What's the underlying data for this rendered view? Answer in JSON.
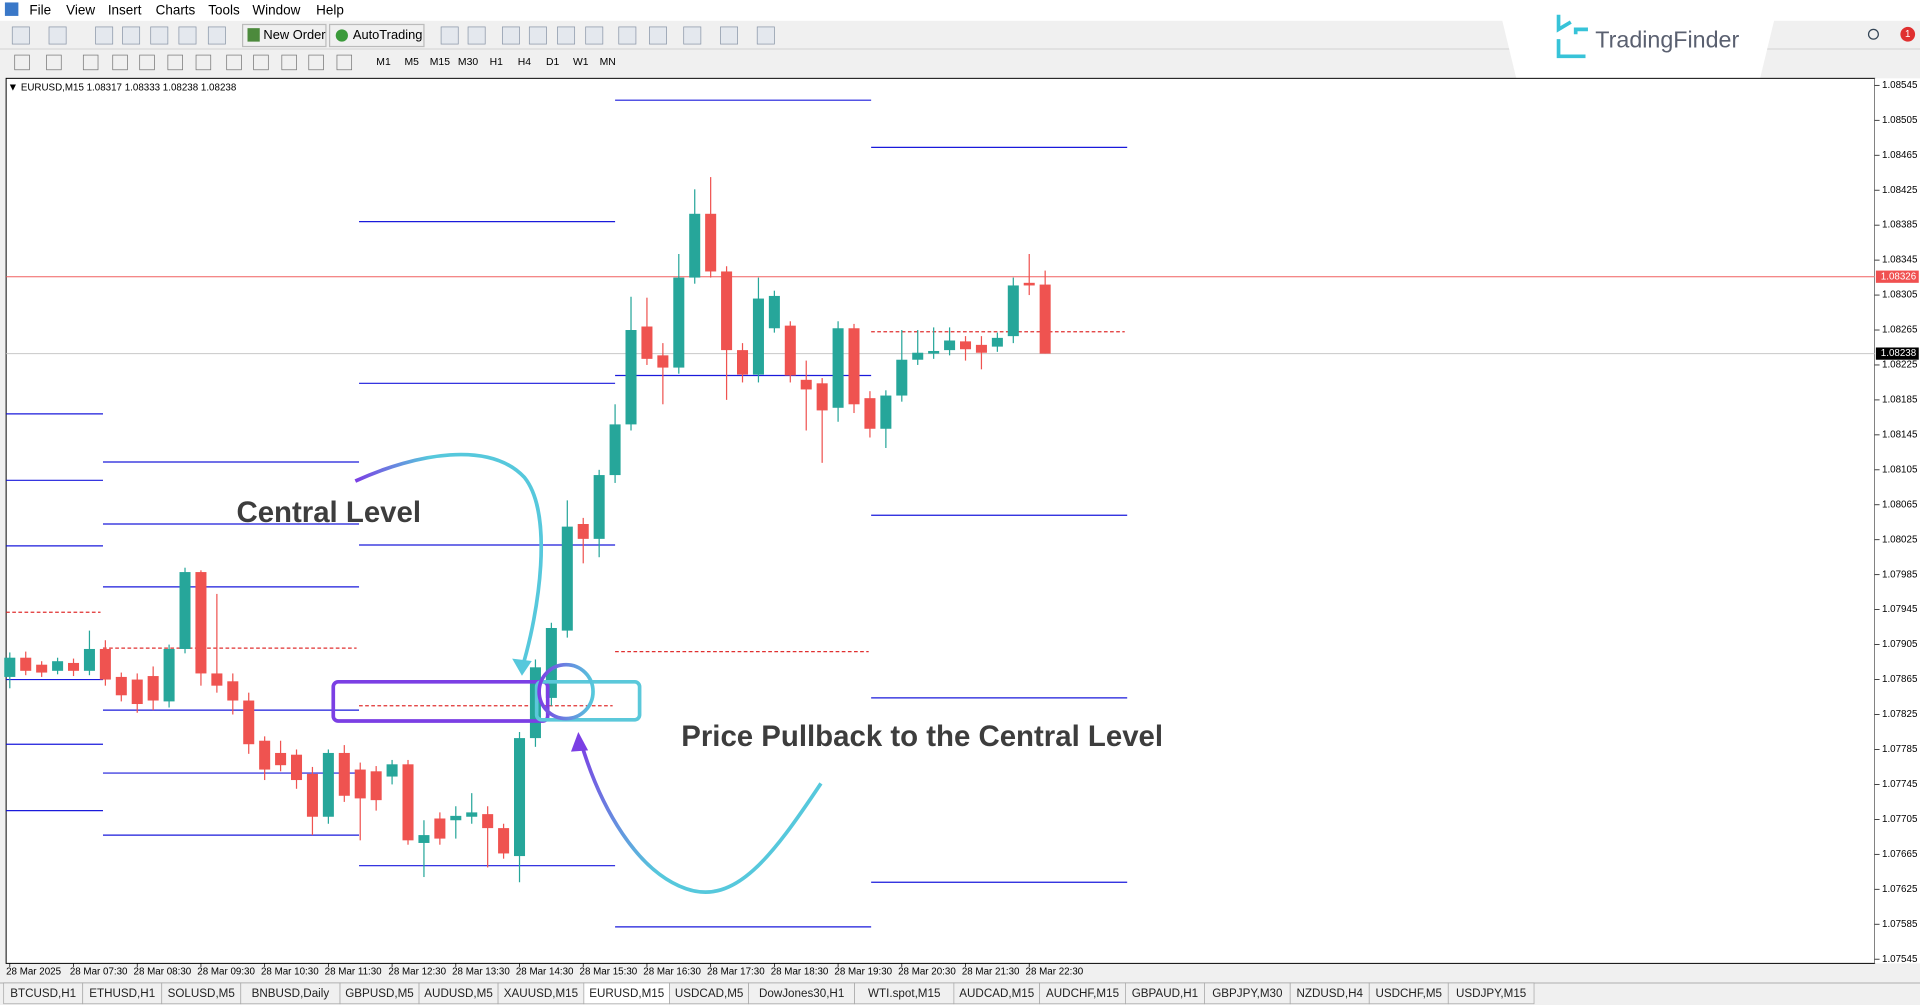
{
  "menu": [
    "File",
    "View",
    "Insert",
    "Charts",
    "Tools",
    "Window",
    "Help"
  ],
  "toolbar": {
    "new_order": "New Order",
    "auto_trading": "AutoTrading",
    "timeframes": [
      "M1",
      "M5",
      "M15",
      "M30",
      "H1",
      "H4",
      "D1",
      "W1",
      "MN"
    ]
  },
  "brand": "TradingFinder",
  "notification_count": 1,
  "chart_data": {
    "type": "candlestick",
    "title": "EURUSD,M15  1.08317 1.08333 1.08238 1.08238",
    "categories": [
      "28 Mar 2025",
      null,
      null,
      null,
      "28 Mar 07:30",
      null,
      null,
      null,
      "28 Mar 08:30",
      null,
      null,
      null,
      "28 Mar 09:30",
      null,
      null,
      null,
      "28 Mar 10:30",
      null,
      null,
      null,
      "28 Mar 11:30",
      null,
      null,
      null,
      "28 Mar 12:30",
      null,
      null,
      null,
      "28 Mar 13:30",
      null,
      null,
      null,
      "28 Mar 14:30",
      null,
      null,
      null,
      "28 Mar 15:30",
      null,
      null,
      null,
      "28 Mar 16:30",
      null,
      null,
      null,
      "28 Mar 17:30",
      null,
      null,
      null,
      "28 Mar 18:30",
      null,
      null,
      null,
      "28 Mar 19:30",
      null,
      null,
      null,
      "28 Mar 20:30",
      null,
      null,
      null,
      "28 Mar 21:30",
      null,
      null,
      null,
      "28 Mar 22:30",
      null
    ],
    "open": [
      1.07868,
      1.0789,
      1.07882,
      1.07875,
      1.07884,
      1.07875,
      1.079,
      1.07868,
      1.07865,
      1.07869,
      1.0784,
      1.079,
      1.07988,
      1.07872,
      1.07863,
      1.07841,
      1.07795,
      1.07781,
      1.07779,
      1.07757,
      1.07708,
      1.07781,
      1.07762,
      1.0776,
      1.07754,
      1.07768,
      1.07678,
      1.07706,
      1.07704,
      1.07708,
      1.07711,
      1.07695,
      1.07663,
      1.07798,
      1.07844,
      1.07921,
      1.08043,
      1.08026,
      1.08099,
      1.08157,
      1.08269,
      1.08236,
      1.08222,
      1.08325,
      1.08398,
      1.08332,
      1.08242,
      1.08214,
      1.08267,
      1.0827,
      1.08208,
      1.08204,
      1.08176,
      1.08267,
      1.08187,
      1.08152,
      1.0819,
      1.08231,
      1.08238,
      1.08242,
      1.08252,
      1.08248,
      1.08246,
      1.08258,
      1.08319,
      1.08317
    ],
    "high": [
      1.07896,
      1.07897,
      1.07886,
      1.0789,
      1.07889,
      1.07921,
      1.0791,
      1.07873,
      1.07872,
      1.0788,
      1.07905,
      1.07993,
      1.0799,
      1.07963,
      1.07872,
      1.0785,
      1.078,
      1.07795,
      1.07785,
      1.07765,
      1.07785,
      1.0779,
      1.0777,
      1.07766,
      1.07773,
      1.07773,
      1.07704,
      1.07713,
      1.0772,
      1.07735,
      1.0772,
      1.077,
      1.07805,
      1.07888,
      1.0793,
      1.0807,
      1.0805,
      1.08105,
      1.0818,
      1.08303,
      1.08302,
      1.0825,
      1.08352,
      1.08426,
      1.0844,
      1.08338,
      1.0825,
      1.08325,
      1.0831,
      1.08275,
      1.0823,
      1.0821,
      1.08275,
      1.08272,
      1.08195,
      1.08196,
      1.08265,
      1.08265,
      1.08268,
      1.08268,
      1.08258,
      1.08258,
      1.08262,
      1.08325,
      1.08352,
      1.08333
    ],
    "low": [
      1.07855,
      1.0787,
      1.07868,
      1.07871,
      1.07869,
      1.0787,
      1.07858,
      1.0784,
      1.07827,
      1.0783,
      1.07833,
      1.07895,
      1.07858,
      1.0785,
      1.07825,
      1.0778,
      1.0775,
      1.0776,
      1.0774,
      1.07687,
      1.077,
      1.07725,
      1.07681,
      1.07715,
      1.07745,
      1.07676,
      1.07639,
      1.07676,
      1.07683,
      1.077,
      1.0765,
      1.0766,
      1.07633,
      1.07788,
      1.07835,
      1.07913,
      1.07998,
      1.08005,
      1.0809,
      1.0815,
      1.08225,
      1.0818,
      1.08215,
      1.08318,
      1.08325,
      1.08185,
      1.08205,
      1.08205,
      1.08262,
      1.08205,
      1.0815,
      1.08113,
      1.0816,
      1.0817,
      1.08142,
      1.0813,
      1.08183,
      1.08225,
      1.08232,
      1.08236,
      1.0823,
      1.0822,
      1.0824,
      1.0825,
      1.08305,
      1.08238
    ],
    "close": [
      1.0789,
      1.07875,
      1.07873,
      1.07886,
      1.07875,
      1.079,
      1.07865,
      1.07847,
      1.07837,
      1.07841,
      1.079,
      1.07988,
      1.07872,
      1.07858,
      1.07841,
      1.07791,
      1.07762,
      1.07767,
      1.0775,
      1.07708,
      1.07781,
      1.07732,
      1.07729,
      1.07727,
      1.07768,
      1.07681,
      1.07687,
      1.07683,
      1.07709,
      1.07713,
      1.07695,
      1.07666,
      1.07798,
      1.07879,
      1.07924,
      1.0804,
      1.08026,
      1.08099,
      1.08157,
      1.08265,
      1.08232,
      1.08222,
      1.08325,
      1.08398,
      1.08332,
      1.08242,
      1.08214,
      1.08301,
      1.08304,
      1.08213,
      1.08197,
      1.08173,
      1.08267,
      1.0818,
      1.08152,
      1.0819,
      1.08231,
      1.08239,
      1.08241,
      1.08253,
      1.08243,
      1.08239,
      1.08256,
      1.08316,
      1.08316,
      1.08238
    ],
    "up_color": "#26a69a",
    "down_color": "#ef5350",
    "ylim": [
      1.07543,
      1.08553
    ],
    "yticks": [
      1.07545,
      1.07585,
      1.07625,
      1.07665,
      1.07705,
      1.07745,
      1.07785,
      1.07825,
      1.07865,
      1.07905,
      1.07945,
      1.07985,
      1.08025,
      1.08065,
      1.08105,
      1.08145,
      1.08185,
      1.08225,
      1.08265,
      1.08305,
      1.08345,
      1.08385,
      1.08425,
      1.08465,
      1.08505,
      1.08545
    ],
    "grid": false,
    "level_color": "#1a1adb",
    "central_color": "#e03030",
    "blocks": [
      {
        "levels": [
          1.08169,
          1.08093,
          1.08018,
          1.07865,
          1.07791,
          1.07715
        ],
        "central": 1.07942
      },
      {
        "levels": [
          1.08114,
          1.08043,
          1.07971,
          1.0783,
          1.07758,
          1.07687
        ],
        "central": 1.07901
      },
      {
        "levels": [
          1.08389,
          1.08204,
          1.08019,
          1.07652
        ],
        "central": 1.07835
      },
      {
        "levels": [
          1.08528,
          1.08213,
          1.07582
        ],
        "central": 1.07897
      },
      {
        "levels": [
          1.08474,
          1.08053,
          1.07844,
          1.07633
        ],
        "central": 1.08263
      }
    ],
    "price_lines": [
      {
        "value": 1.08326,
        "color": "#f06060",
        "label_color": "#f05050"
      },
      {
        "value": 1.08238,
        "color": "#c8c8c8",
        "label_color": "#000000"
      }
    ]
  },
  "annotations": [
    "Central Level",
    "Price Pullback to the Central Level"
  ],
  "tabs": [
    "BTCUSD,H1",
    "ETHUSD,H1",
    "SOLUSD,M5",
    "BNBUSD,Daily",
    "GBPUSD,M5",
    "AUDUSD,M5",
    "XAUUSD,M15",
    "EURUSD,M15",
    "USDCAD,M5",
    "DowJones30,H1",
    "WTI.spot,M15",
    "AUDCAD,M15",
    "AUDCHF,M15",
    "GBPAUD,H1",
    "GBPJPY,M30",
    "NZDUSD,H4",
    "USDCHF,M5",
    "USDJPY,M15"
  ],
  "active_tab": "EURUSD,M15"
}
